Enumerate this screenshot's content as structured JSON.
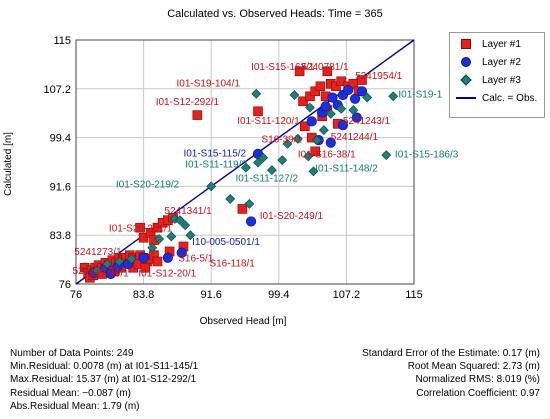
{
  "chart_data": {
    "type": "scatter",
    "title": "Calculated vs. Observed Heads: Time = 365",
    "xlabel": "Observed Head [m]",
    "ylabel": "Calculated [m]",
    "xlim": [
      76,
      115
    ],
    "ylim": [
      76,
      115
    ],
    "xticks": [
      "76",
      "83.8",
      "91.6",
      "99.4",
      "107.2",
      "115"
    ],
    "yticks": [
      "76",
      "83.8",
      "91.6",
      "99.4",
      "107.2",
      "115"
    ],
    "grid": true,
    "legend_position": "top-right",
    "legend": [
      {
        "label": "Layer #1",
        "symbol": "square",
        "color": "#e8201c"
      },
      {
        "label": "Layer #2",
        "symbol": "circle",
        "color": "#1c2fe0"
      },
      {
        "label": "Layer #3",
        "symbol": "diamond",
        "color": "#1e7f7a"
      },
      {
        "label": "Calc. = Obs.",
        "symbol": "line",
        "color": "#00008b"
      }
    ],
    "series": [
      {
        "name": "Layer #1",
        "marker": "square",
        "color": "#e8201c",
        "points": [
          [
            77.0,
            78.6
          ],
          [
            77.4,
            77.8
          ],
          [
            77.8,
            78.2
          ],
          [
            78.2,
            78.6
          ],
          [
            78.6,
            79.0
          ],
          [
            79.0,
            78.6
          ],
          [
            79.4,
            79.4
          ],
          [
            79.8,
            79.0
          ],
          [
            80.2,
            79.8
          ],
          [
            80.6,
            79.4
          ],
          [
            81.0,
            80.2
          ],
          [
            81.4,
            79.8
          ],
          [
            81.8,
            80.2
          ],
          [
            82.2,
            80.6
          ],
          [
            82.6,
            80.2
          ],
          [
            83.0,
            79.8
          ],
          [
            83.4,
            80.6
          ],
          [
            83.8,
            80.2
          ],
          [
            84.2,
            79.6
          ],
          [
            84.6,
            80.0
          ],
          [
            85.0,
            80.6
          ],
          [
            85.4,
            79.6
          ],
          [
            77.6,
            77.0
          ],
          [
            78.0,
            77.4
          ],
          [
            79.0,
            77.6
          ],
          [
            80.4,
            78.0
          ],
          [
            81.2,
            78.6
          ],
          [
            82.6,
            78.6
          ],
          [
            83.2,
            79.2
          ],
          [
            84.0,
            78.6
          ],
          [
            83.8,
            83.4
          ],
          [
            84.6,
            84.2
          ],
          [
            85.4,
            85.0
          ],
          [
            86.0,
            85.8
          ],
          [
            86.6,
            86.2
          ],
          [
            87.2,
            86.6
          ],
          [
            85.0,
            83.0
          ],
          [
            83.4,
            85.0
          ],
          [
            86.8,
            81.2
          ],
          [
            88.4,
            82.0
          ],
          [
            95.2,
            88.0
          ],
          [
            102.2,
            105.2
          ],
          [
            103.0,
            106.0
          ],
          [
            103.6,
            106.8
          ],
          [
            104.2,
            107.6
          ],
          [
            104.8,
            106.0
          ],
          [
            105.4,
            108.0
          ],
          [
            106.0,
            107.6
          ],
          [
            106.6,
            108.4
          ],
          [
            107.4,
            107.6
          ],
          [
            108.0,
            108.0
          ],
          [
            108.6,
            106.8
          ],
          [
            109.0,
            108.6
          ],
          [
            101.8,
            110.0
          ],
          [
            105.0,
            110.0
          ],
          [
            102.4,
            101.2
          ],
          [
            103.2,
            99.4
          ],
          [
            104.4,
            102.8
          ],
          [
            105.0,
            103.8
          ],
          [
            106.2,
            101.6
          ],
          [
            103.6,
            97.2
          ],
          [
            90.0,
            103.0
          ],
          [
            97.0,
            103.6
          ]
        ]
      },
      {
        "name": "Layer #2",
        "marker": "circle",
        "color": "#1c2fe0",
        "points": [
          [
            78.0,
            77.8
          ],
          [
            79.4,
            78.6
          ],
          [
            80.8,
            78.8
          ],
          [
            82.0,
            79.2
          ],
          [
            83.8,
            80.2
          ],
          [
            80.0,
            77.6
          ],
          [
            86.6,
            80.2
          ],
          [
            88.2,
            81.0
          ],
          [
            96.2,
            86.0
          ],
          [
            97.0,
            96.8
          ],
          [
            103.2,
            102.0
          ],
          [
            104.4,
            103.4
          ],
          [
            104.8,
            104.4
          ],
          [
            105.6,
            105.8
          ],
          [
            106.2,
            104.6
          ],
          [
            106.8,
            106.2
          ],
          [
            107.4,
            107.0
          ],
          [
            108.2,
            105.6
          ],
          [
            109.0,
            106.8
          ],
          [
            104.0,
            99.0
          ],
          [
            105.4,
            98.6
          ],
          [
            106.8,
            101.4
          ],
          [
            108.4,
            102.6
          ]
        ]
      },
      {
        "name": "Layer #3",
        "marker": "diamond",
        "color": "#1e7f7a",
        "points": [
          [
            78.4,
            78.2
          ],
          [
            79.6,
            79.2
          ],
          [
            81.0,
            79.6
          ],
          [
            82.4,
            80.0
          ],
          [
            84.8,
            81.8
          ],
          [
            85.6,
            83.2
          ],
          [
            87.0,
            83.6
          ],
          [
            87.4,
            86.4
          ],
          [
            88.0,
            86.2
          ],
          [
            89.2,
            83.8
          ],
          [
            88.6,
            85.4
          ],
          [
            91.6,
            91.6
          ],
          [
            93.8,
            89.6
          ],
          [
            96.0,
            88.8
          ],
          [
            95.6,
            94.6
          ],
          [
            97.6,
            96.2
          ],
          [
            97.0,
            95.4
          ],
          [
            98.6,
            94.2
          ],
          [
            99.8,
            95.8
          ],
          [
            100.4,
            98.4
          ],
          [
            101.6,
            99.2
          ],
          [
            102.8,
            96.4
          ],
          [
            103.4,
            94.0
          ],
          [
            103.8,
            99.0
          ],
          [
            104.6,
            100.6
          ],
          [
            101.2,
            106.2
          ],
          [
            103.0,
            104.2
          ],
          [
            105.4,
            103.2
          ],
          [
            106.6,
            104.0
          ],
          [
            108.0,
            103.8
          ],
          [
            109.6,
            105.8
          ],
          [
            112.6,
            106.0
          ],
          [
            111.8,
            96.6
          ],
          [
            96.8,
            106.4
          ]
        ]
      }
    ],
    "annotations": [
      {
        "text": "I01-S15-163/1",
        "color": "red",
        "x": 96.2,
        "y": 110.2
      },
      {
        "text": "5240781/1",
        "color": "red",
        "x": 102.0,
        "y": 110.2
      },
      {
        "text": "I01-S19-104/1",
        "color": "red",
        "x": 87.6,
        "y": 107.6
      },
      {
        "text": "5241954/1",
        "color": "red",
        "x": 108.2,
        "y": 108.8
      },
      {
        "text": "I01-S19-1",
        "color": "teal",
        "x": 113.2,
        "y": 105.8
      },
      {
        "text": "I01-S12-292/1",
        "color": "red",
        "x": 85.2,
        "y": 104.6
      },
      {
        "text": "I01-S11-120/1",
        "color": "red",
        "x": 94.6,
        "y": 101.6
      },
      {
        "text": "5241243/1",
        "color": "red",
        "x": 106.8,
        "y": 101.6
      },
      {
        "text": "S16-39/1",
        "color": "red",
        "x": 97.4,
        "y": 98.6
      },
      {
        "text": "5241244/1",
        "color": "red",
        "x": 105.4,
        "y": 99.0
      },
      {
        "text": "I01-S15-115/2",
        "color": "blue",
        "x": 88.4,
        "y": 96.4
      },
      {
        "text": "I01-S16-38/1",
        "color": "red",
        "x": 101.6,
        "y": 96.2
      },
      {
        "text": "I01-S15-186/3",
        "color": "teal",
        "x": 112.8,
        "y": 96.2
      },
      {
        "text": "I01-S11-119/2",
        "color": "teal",
        "x": 88.6,
        "y": 94.6
      },
      {
        "text": "I01-S11-148/2",
        "color": "teal",
        "x": 103.6,
        "y": 94.0
      },
      {
        "text": "I01-S20-219/2",
        "color": "teal",
        "x": 80.6,
        "y": 91.4
      },
      {
        "text": "I01-S11-127/2",
        "color": "teal",
        "x": 94.4,
        "y": 92.4
      },
      {
        "text": "5241341/1",
        "color": "red",
        "x": 86.2,
        "y": 87.2
      },
      {
        "text": "I01-S20-249/1",
        "color": "red",
        "x": 97.2,
        "y": 86.4
      },
      {
        "text": "I01-S20-251/1",
        "color": "red",
        "x": 79.8,
        "y": 84.4
      },
      {
        "text": "I10-005-0501/1",
        "color": "blue",
        "x": 89.4,
        "y": 82.2
      },
      {
        "text": "5241273/1",
        "color": "red",
        "x": 75.8,
        "y": 80.6
      },
      {
        "text": "S16-5/1",
        "color": "red",
        "x": 87.8,
        "y": 79.6
      },
      {
        "text": "S16-118/1",
        "color": "red",
        "x": 91.4,
        "y": 78.8
      },
      {
        "text": "5241247/1",
        "color": "red",
        "x": 75.6,
        "y": 77.6
      },
      {
        "text": "S17-20/1",
        "color": "red",
        "x": 77.4,
        "y": 77.2
      },
      {
        "text": "I01-S12-20/1",
        "color": "red",
        "x": 83.2,
        "y": 77.2
      }
    ]
  },
  "stats_left": [
    "Number of Data Points: 249",
    "Min.Residual: 0.0078 (m) at I01-S11-145/1",
    "Max.Residual: 15.37 (m) at I01-S12-292/1",
    "Residual Mean: −0.087 (m)",
    "Abs.Residual Mean: 1.79 (m)"
  ],
  "stats_right": [
    "Standard Error of the Estimate: 0.17 (m)",
    "Root Mean Squared: 2.73 (m)",
    "Normalized RMS: 8.019 (%)",
    "Correlation Coefficient: 0.97"
  ],
  "colors": {
    "red": "#c0141a",
    "blue": "#1020c0",
    "teal": "#127a74"
  }
}
